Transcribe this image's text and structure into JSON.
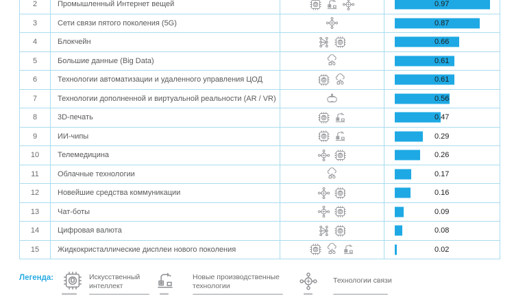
{
  "table": {
    "rows": [
      {
        "rank": "2",
        "name": "Промышленный Интернет вещей",
        "icons": [
          "ai-chip",
          "production",
          "network"
        ],
        "value": 0.97,
        "value_label": "0.97"
      },
      {
        "rank": "3",
        "name": "Сети связи пятого поколения (5G)",
        "icons": [
          "network"
        ],
        "value": 0.87,
        "value_label": "0.87"
      },
      {
        "rank": "4",
        "name": "Блокчейн",
        "icons": [
          "blockchain",
          "ai-chip"
        ],
        "value": 0.66,
        "value_label": "0.66"
      },
      {
        "rank": "5",
        "name": "Большие данные (Big Data)",
        "icons": [
          "cloud"
        ],
        "value": 0.61,
        "value_label": "0.61"
      },
      {
        "rank": "6",
        "name": "Технологии автоматизации и удаленного управления ЦОД",
        "icons": [
          "ai-chip",
          "cloud"
        ],
        "value": 0.61,
        "value_label": "0.61"
      },
      {
        "rank": "7",
        "name": "Технологии дополненной и виртуальной реальности (AR / VR)",
        "icons": [
          "vr"
        ],
        "value": 0.56,
        "value_label": "0.56"
      },
      {
        "rank": "8",
        "name": "3D-печать",
        "icons": [
          "ai-chip",
          "production"
        ],
        "value": 0.47,
        "value_label": "0.47"
      },
      {
        "rank": "9",
        "name": "ИИ-чипы",
        "icons": [
          "ai-chip",
          "production"
        ],
        "value": 0.29,
        "value_label": "0.29"
      },
      {
        "rank": "10",
        "name": "Телемедицина",
        "icons": [
          "network",
          "ai-chip"
        ],
        "value": 0.26,
        "value_label": "0.26"
      },
      {
        "rank": "11",
        "name": "Облачные технологии",
        "icons": [
          "cloud"
        ],
        "value": 0.17,
        "value_label": "0.17"
      },
      {
        "rank": "12",
        "name": "Новейшие средства коммуникации",
        "icons": [
          "network",
          "ai-chip"
        ],
        "value": 0.16,
        "value_label": "0.16"
      },
      {
        "rank": "13",
        "name": "Чат-боты",
        "icons": [
          "network",
          "ai-chip"
        ],
        "value": 0.09,
        "value_label": "0.09"
      },
      {
        "rank": "14",
        "name": "Цифровая валюта",
        "icons": [
          "blockchain",
          "ai-chip"
        ],
        "value": 0.08,
        "value_label": "0.08"
      },
      {
        "rank": "15",
        "name": "Жидкокристаллические дисплеи нового поколения",
        "icons": [
          "ai-chip",
          "cloud",
          "production"
        ],
        "value": 0.02,
        "value_label": "0.02"
      }
    ]
  },
  "legend": {
    "title": "Легенда:",
    "items": [
      {
        "icon": "ai-chip",
        "label": "Искусственный интеллект"
      },
      {
        "icon": "production",
        "label": "Новые производственные технологии"
      },
      {
        "icon": "network",
        "label": "Технологии связи"
      }
    ]
  },
  "colors": {
    "bar": "#1ea9e4",
    "border": "#a9dcee",
    "accent": "#29abe2",
    "row_text": "#58595b",
    "value_text": "#1b1b1b",
    "icon": "#8b8d90"
  },
  "chart_data": {
    "type": "bar",
    "orientation": "horizontal",
    "ranks": [
      2,
      3,
      4,
      5,
      6,
      7,
      8,
      9,
      10,
      11,
      12,
      13,
      14,
      15
    ],
    "categories": [
      "Промышленный Интернет вещей",
      "Сети связи пятого поколения (5G)",
      "Блокчейн",
      "Большие данные (Big Data)",
      "Технологии автоматизации и удаленного управления ЦОД",
      "Технологии дополненной и виртуальной реальности (AR / VR)",
      "3D-печать",
      "ИИ-чипы",
      "Телемедицина",
      "Облачные технологии",
      "Новейшие средства коммуникации",
      "Чат-боты",
      "Цифровая валюта",
      "Жидкокристаллические дисплеи нового поколения"
    ],
    "values": [
      0.97,
      0.87,
      0.66,
      0.61,
      0.61,
      0.56,
      0.47,
      0.29,
      0.26,
      0.17,
      0.16,
      0.09,
      0.08,
      0.02
    ],
    "xlim": [
      0,
      1
    ],
    "legend_position": "bottom",
    "grid": false
  }
}
